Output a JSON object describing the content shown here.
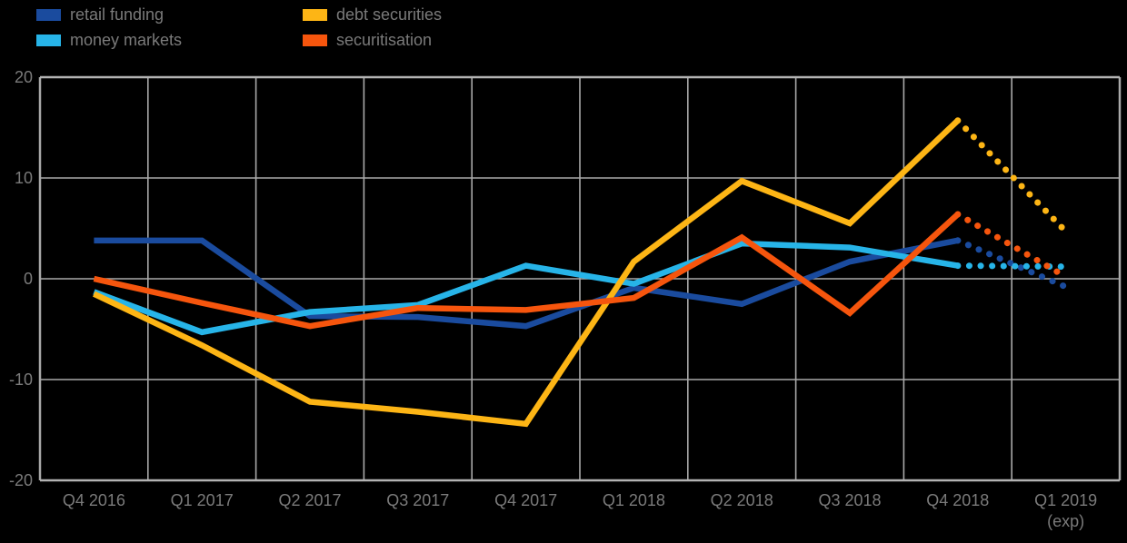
{
  "background_color": "#000000",
  "grid_color": "#a9a9a9",
  "axis_border_color": "#b3b3b3",
  "text_color": "#7a7a7a",
  "chart_data": {
    "type": "line",
    "title": "",
    "xlabel": "",
    "ylabel": "",
    "ylim": [
      -20,
      20
    ],
    "yticks": [
      20,
      10,
      0,
      -10,
      -20
    ],
    "grid": true,
    "legend_position": "top-left",
    "categories": [
      "Q4 2016",
      "Q1 2017",
      "Q2 2017",
      "Q3 2017",
      "Q4 2017",
      "Q1 2018",
      "Q2 2018",
      "Q3 2018",
      "Q4 2018",
      "Q1 2019"
    ],
    "category_sublabels": [
      "",
      "",
      "",
      "",
      "",
      "",
      "",
      "",
      "",
      "(exp)"
    ],
    "forecast_note": "last segment (Q4 2018 to Q1 2019) drawn dotted for all series",
    "series": [
      {
        "name": "retail funding",
        "color": "#1a4b9e",
        "values": [
          3.8,
          3.8,
          -3.7,
          -3.8,
          -4.7,
          -0.9,
          -2.5,
          1.7,
          3.8,
          -0.8
        ],
        "dotted_from_index": 8
      },
      {
        "name": "money markets",
        "color": "#27b4e8",
        "values": [
          -1.3,
          -5.3,
          -3.3,
          -2.6,
          1.3,
          -0.5,
          3.5,
          3.1,
          1.3,
          1.2
        ],
        "dotted_from_index": 8
      },
      {
        "name": "debt securities",
        "color": "#fdb515",
        "values": [
          -1.5,
          -6.6,
          -12.2,
          -13.2,
          -14.4,
          1.7,
          9.7,
          5.5,
          15.7,
          4.7
        ],
        "dotted_from_index": 8
      },
      {
        "name": "securitisation",
        "color": "#f6550d",
        "values": [
          0.0,
          -2.4,
          -4.7,
          -2.9,
          -3.1,
          -1.9,
          4.1,
          -3.4,
          6.4,
          0.2
        ],
        "dotted_from_index": 8
      }
    ]
  }
}
